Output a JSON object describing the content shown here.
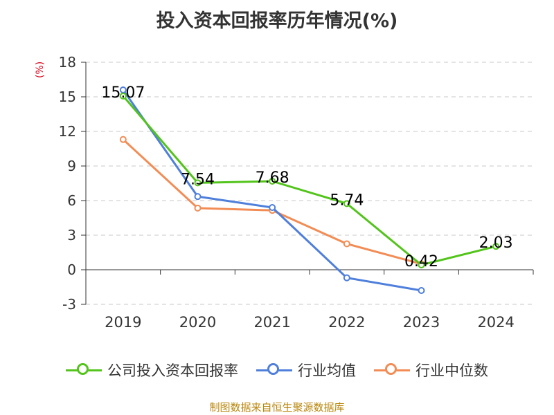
{
  "chart_data": {
    "type": "line",
    "title": "投入资本回报率历年情况(%)",
    "y_unit": "(%)",
    "categories": [
      "2019",
      "2020",
      "2021",
      "2022",
      "2023",
      "2024"
    ],
    "ylim": [
      -3,
      18
    ],
    "y_ticks": [
      -3,
      0,
      3,
      6,
      9,
      12,
      15,
      18
    ],
    "grid": true,
    "legend_position": "bottom",
    "series": [
      {
        "name": "公司投入资本回报率",
        "color": "#52c41a",
        "values": [
          15.07,
          7.54,
          7.68,
          5.74,
          0.42,
          2.03
        ],
        "labels": [
          "15.07",
          "7.54",
          "7.68",
          "5.74",
          "0.42",
          "2.03"
        ]
      },
      {
        "name": "行业均值",
        "color": "#4e7fdb",
        "values": [
          15.6,
          6.35,
          5.4,
          -0.7,
          -1.8,
          null
        ]
      },
      {
        "name": "行业中位数",
        "color": "#f28c54",
        "values": [
          11.3,
          5.35,
          5.15,
          2.25,
          0.5,
          null
        ]
      }
    ]
  },
  "footer": {
    "source": "制图数据来自恒生聚源数据库"
  }
}
